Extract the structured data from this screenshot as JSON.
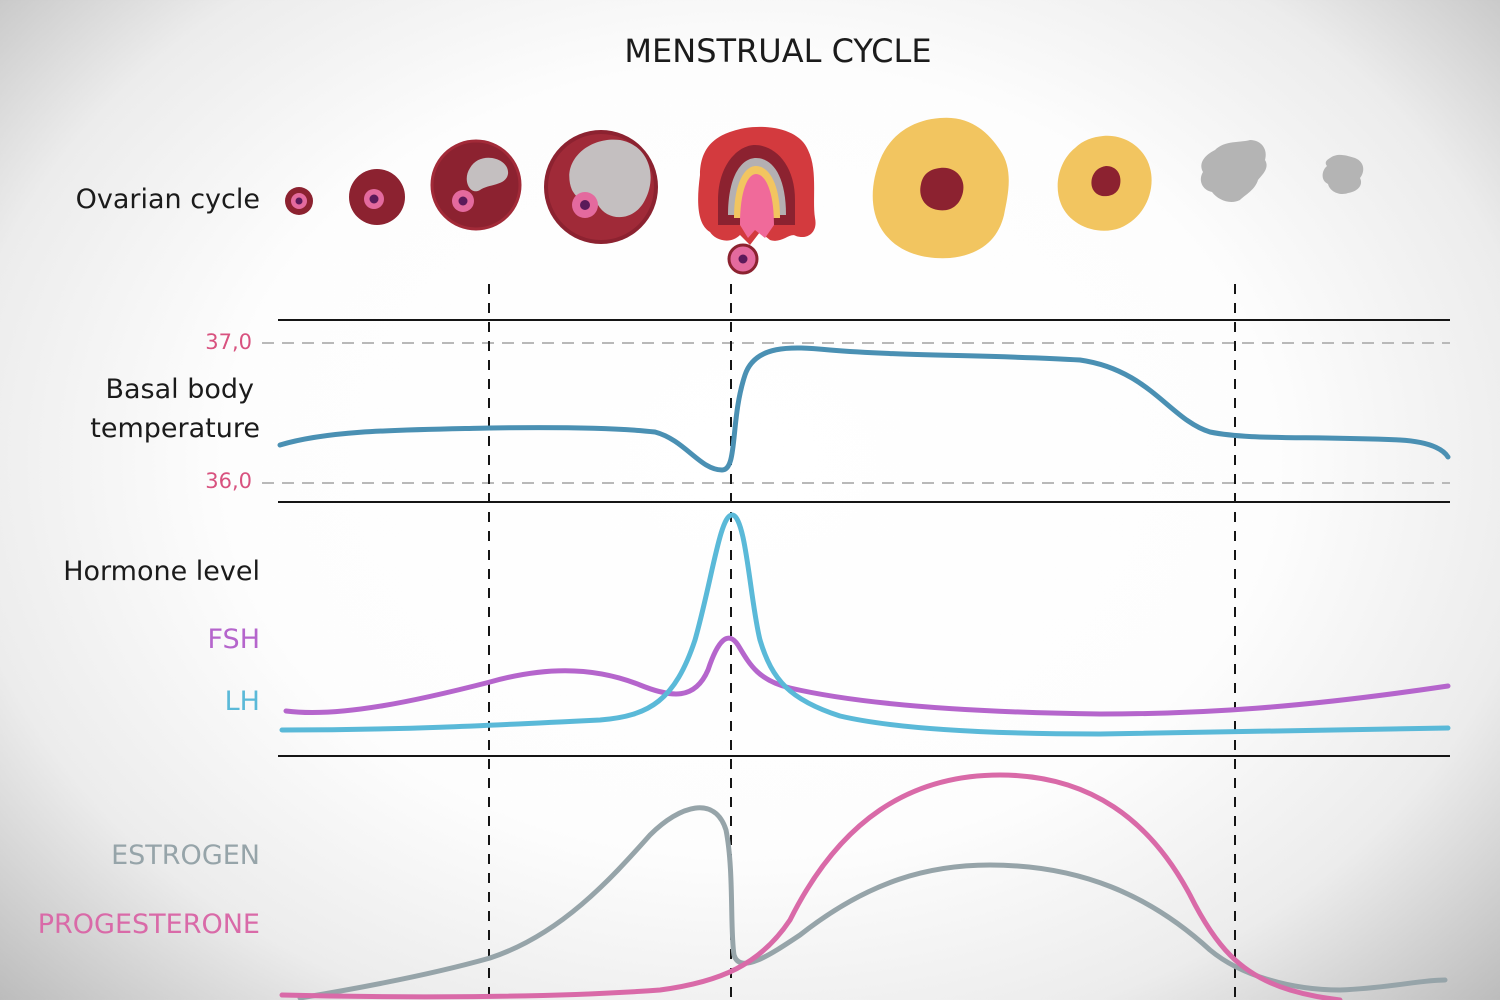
{
  "title": "MENSTRUAL CYCLE",
  "ovarian_label": "Ovarian cycle",
  "temperature": {
    "label_line1": "Basal body",
    "label_line2": "temperature",
    "tick_high": "37,0",
    "tick_low": "36,0"
  },
  "hormones": {
    "label": "Hormone level",
    "fsh": "FSH",
    "lh": "LH",
    "estrogen": "ESTROGEN",
    "progesterone": "PROGESTERONE"
  },
  "colors": {
    "temperature": "#4a90b3",
    "fsh": "#b565cc",
    "lh": "#5ab9d8",
    "estrogen": "#96a4a9",
    "progesterone": "#d96aa8",
    "tick": "#d8527f",
    "follicle_dark": "#8c2230",
    "corpus_luteum": "#f2c560",
    "albicans": "#b4b4b4"
  },
  "icons": [
    "primordial-follicle-icon",
    "primary-follicle-icon",
    "secondary-follicle-icon",
    "mature-follicle-icon",
    "ovulation-follicle-icon",
    "egg-cell-icon",
    "corpus-luteum-large-icon",
    "corpus-luteum-small-icon",
    "corpus-albicans-large-icon",
    "corpus-albicans-small-icon"
  ]
}
